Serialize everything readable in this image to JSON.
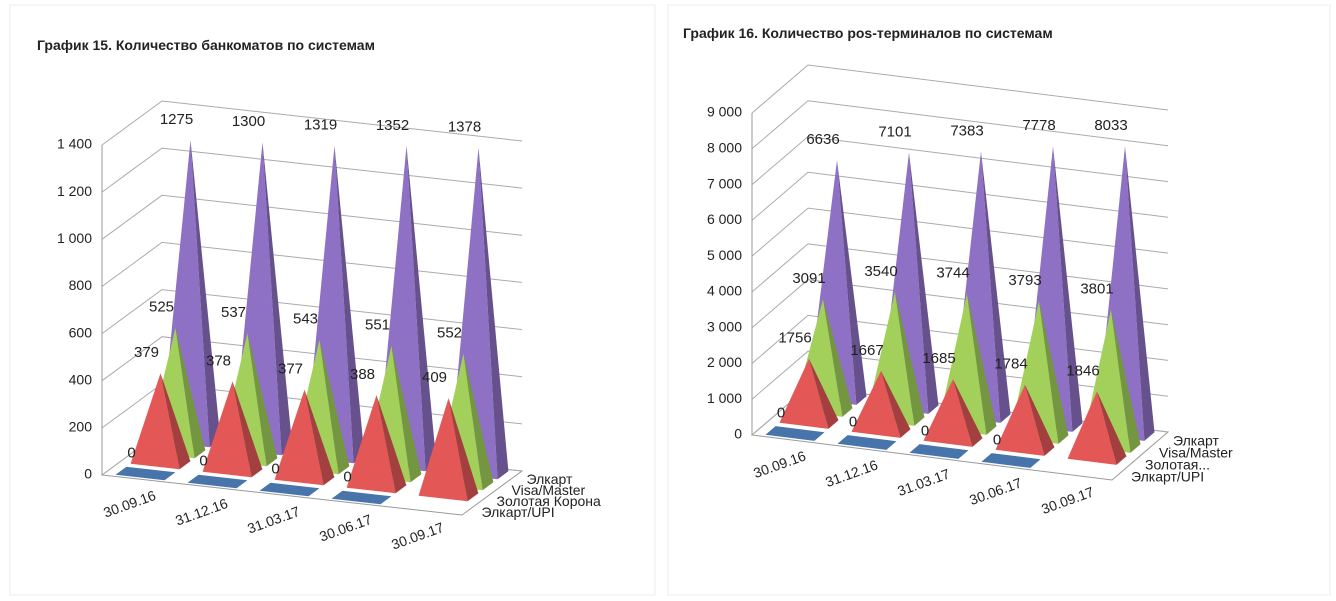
{
  "chart_data": [
    {
      "type": "pyramid",
      "title": "График 15. Количество банкоматов по системам",
      "categories": [
        "30.09.16",
        "31.12.16",
        "31.03.17",
        "30.06.17",
        "30.09.17"
      ],
      "series": [
        {
          "name": "Элкарт/UPI",
          "color": "#4f81bd",
          "values": [
            0,
            0,
            0,
            0,
            null
          ]
        },
        {
          "name": "Золотая Корона",
          "color": "#e35757",
          "values": [
            379,
            378,
            377,
            388,
            409
          ]
        },
        {
          "name": "Visa/Master",
          "color": "#a2d05a",
          "values": [
            525,
            537,
            543,
            551,
            552
          ]
        },
        {
          "name": "Элкарт",
          "color": "#8e70c4",
          "values": [
            1275,
            1300,
            1319,
            1352,
            1378
          ]
        }
      ],
      "ylim": [
        0,
        1400
      ],
      "yticks": [
        0,
        200,
        400,
        600,
        800,
        {
          "value": 1000,
          "label": "1 000"
        },
        {
          "value": 1200,
          "label": "1 200"
        },
        {
          "value": 1400,
          "label": "1 400"
        }
      ],
      "grid": true
    },
    {
      "type": "pyramid",
      "title": "График 16. Количество pos-терминалов по системам",
      "categories": [
        "30.09.16",
        "31.12.16",
        "31.03.17",
        "30.06.17",
        "30.09.17"
      ],
      "series": [
        {
          "name": "Элкарт/UPI",
          "color": "#4f81bd",
          "values": [
            0,
            0,
            0,
            0,
            null
          ]
        },
        {
          "name": "Золотая...",
          "color": "#e35757",
          "values": [
            1756,
            1667,
            1685,
            1784,
            1846
          ]
        },
        {
          "name": "Visa/Master",
          "color": "#a2d05a",
          "values": [
            3091,
            3540,
            3744,
            3793,
            3801
          ]
        },
        {
          "name": "Элкарт",
          "color": "#8e70c4",
          "values": [
            6636,
            7101,
            7383,
            7778,
            8033
          ]
        }
      ],
      "ylim": [
        0,
        9000
      ],
      "yticks": [
        0,
        {
          "value": 1000,
          "label": "1 000"
        },
        {
          "value": 2000,
          "label": "2 000"
        },
        {
          "value": 3000,
          "label": "3 000"
        },
        {
          "value": 4000,
          "label": "4 000"
        },
        {
          "value": 5000,
          "label": "5 000"
        },
        {
          "value": 6000,
          "label": "6 000"
        },
        {
          "value": 7000,
          "label": "7 000"
        },
        {
          "value": 8000,
          "label": "8 000"
        },
        {
          "value": 9000,
          "label": "9 000"
        }
      ],
      "grid": true
    }
  ]
}
